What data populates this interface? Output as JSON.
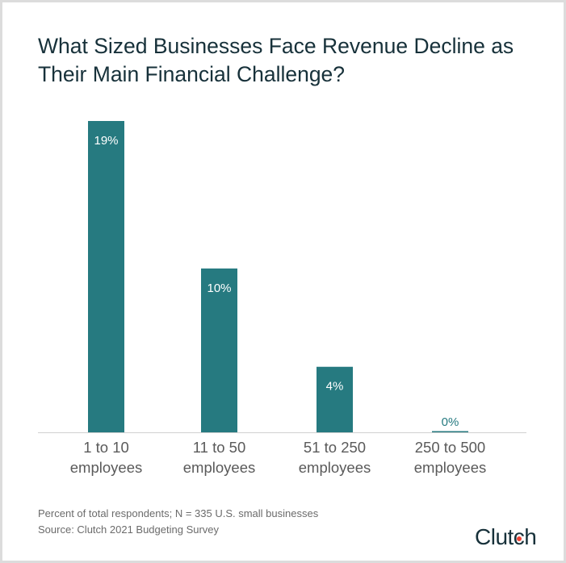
{
  "chart_data": {
    "type": "bar",
    "title": "What Sized Businesses Face Revenue Decline as Their Main Financial Challenge?",
    "categories": [
      [
        "1 to 10",
        "employees"
      ],
      [
        "11 to 50",
        "employees"
      ],
      [
        "51 to 250",
        "employees"
      ],
      [
        "250 to 500",
        "employees"
      ]
    ],
    "values": [
      19,
      10,
      4,
      0
    ],
    "data_labels": [
      "19%",
      "10%",
      "4%",
      "0%"
    ],
    "unit": "%",
    "xlabel": "",
    "ylabel": "",
    "ylim": [
      0,
      19
    ],
    "grid": false,
    "bar_color": "#267a80"
  },
  "footer": {
    "note": "Percent of total respondents; N = 335 U.S. small businesses",
    "source": "Source: Clutch 2021 Budgeting Survey"
  },
  "logo": {
    "text": "Clutch",
    "dot_color": "#ef4335"
  }
}
